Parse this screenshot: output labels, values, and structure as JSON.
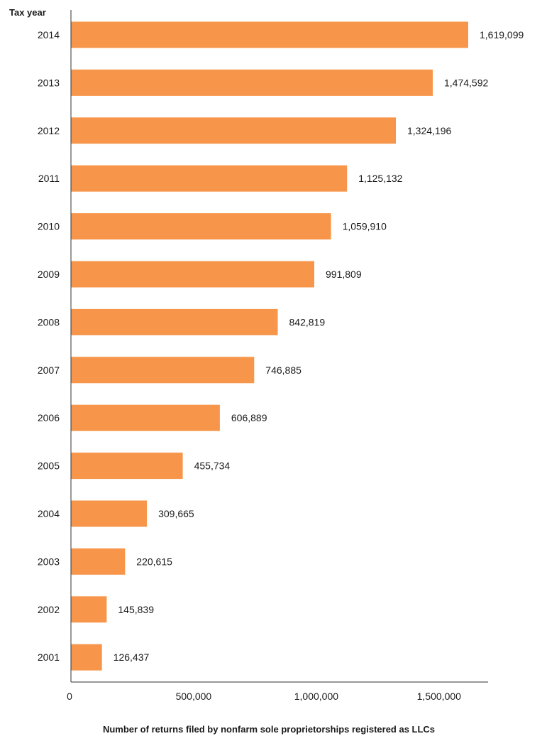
{
  "chart_data": {
    "type": "bar",
    "orientation": "horizontal",
    "title": "",
    "ylabel": "Tax year",
    "xlabel": "Number of returns filed by nonfarm sole proprietorships registered as LLCs",
    "categories": [
      "2014",
      "2013",
      "2012",
      "2011",
      "2010",
      "2009",
      "2008",
      "2007",
      "2006",
      "2005",
      "2004",
      "2003",
      "2002",
      "2001"
    ],
    "values": [
      1619099,
      1474592,
      1324196,
      1125132,
      1059910,
      991809,
      842819,
      746885,
      606889,
      455734,
      309665,
      220615,
      145839,
      126437
    ],
    "value_labels": [
      "1,619,099",
      "1,474,592",
      "1,324,196",
      "1,125,132",
      "1,059,910",
      "991,809",
      "842,819",
      "746,885",
      "606,889",
      "455,734",
      "309,665",
      "220,615",
      "145,839",
      "126,437"
    ],
    "xlim": [
      0,
      1700000
    ],
    "xticks": [
      0,
      500000,
      1000000,
      1500000
    ],
    "xtick_labels": [
      "0",
      "500,000",
      "1,000,000",
      "1,500,000"
    ],
    "bar_color": "#f7964a",
    "axis_color": "#333333",
    "grid": false,
    "legend": "none"
  }
}
